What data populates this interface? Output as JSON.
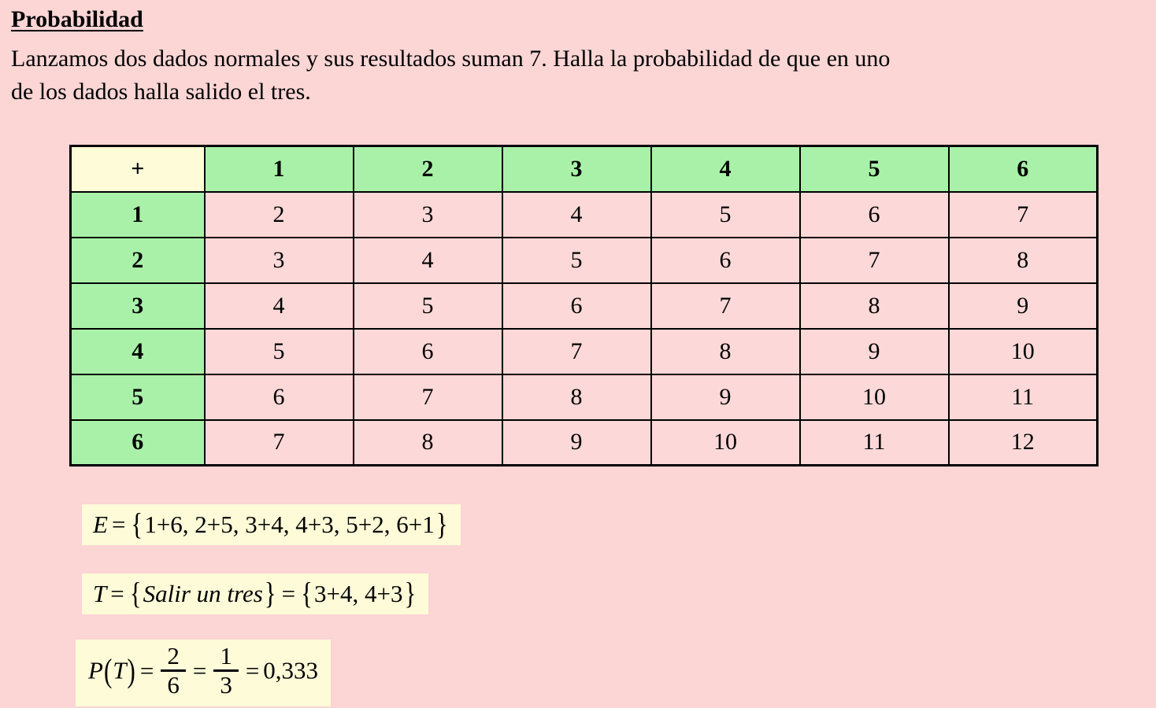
{
  "page": {
    "title": "Probabilidad",
    "problem_line1": "Lanzamos dos dados normales y sus resultados suman 7. Halla la probabilidad de que en uno",
    "problem_line2": "de los dados halla salido el tres."
  },
  "sum_table": {
    "corner": "+",
    "col_headers": [
      "1",
      "2",
      "3",
      "4",
      "5",
      "6"
    ],
    "rows": [
      {
        "header": "1",
        "cells": [
          "2",
          "3",
          "4",
          "5",
          "6",
          "7"
        ]
      },
      {
        "header": "2",
        "cells": [
          "3",
          "4",
          "5",
          "6",
          "7",
          "8"
        ]
      },
      {
        "header": "3",
        "cells": [
          "4",
          "5",
          "6",
          "7",
          "8",
          "9"
        ]
      },
      {
        "header": "4",
        "cells": [
          "5",
          "6",
          "7",
          "8",
          "9",
          "10"
        ]
      },
      {
        "header": "5",
        "cells": [
          "6",
          "7",
          "8",
          "9",
          "10",
          "11"
        ]
      },
      {
        "header": "6",
        "cells": [
          "7",
          "8",
          "9",
          "10",
          "11",
          "12"
        ]
      }
    ]
  },
  "formulas": {
    "sample_space": {
      "var": "E",
      "eq": "=",
      "open": "{",
      "body": "1+6, 2+5, 3+4, 4+3, 5+2, 6+1",
      "close": "}"
    },
    "event": {
      "var": "T",
      "eq": "=",
      "open": "{",
      "text": "Salir un tres",
      "close": "}",
      "eq2": "=",
      "open2": "{",
      "body": "3+4, 4+3",
      "close2": "}"
    },
    "probability": {
      "func": "P",
      "open": "(",
      "arg": "T",
      "close": ")",
      "eq": "=",
      "frac1_num": "2",
      "frac1_den": "6",
      "eq2": "=",
      "frac2_num": "1",
      "frac2_den": "3",
      "eq3": "=",
      "result": "0,333"
    }
  },
  "colors": {
    "page_background": "#fcd5d5",
    "table_cell_pink": "#fdd8d8",
    "table_header_green": "#a9f1a9",
    "highlight_cream": "#fdfbd8",
    "border_black": "#000000",
    "text_black": "#000000"
  }
}
